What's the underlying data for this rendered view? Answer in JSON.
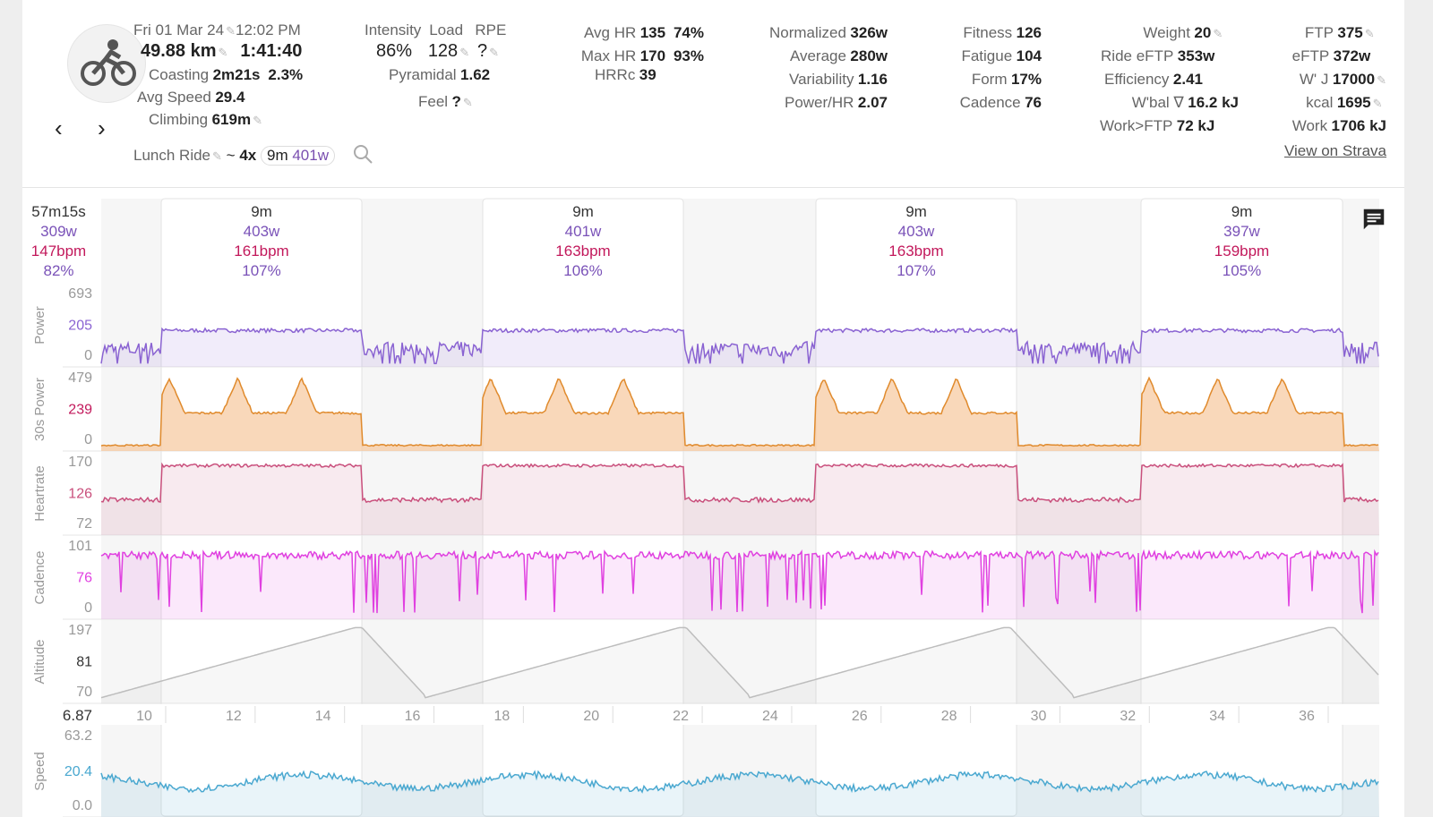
{
  "header": {
    "date": "Fri 01 Mar 24",
    "time": "12:02 PM",
    "distance": "49.88 km",
    "duration": "1:41:40",
    "coasting_label": "Coasting",
    "coasting": "2m21s",
    "coasting_pct": "2.3%",
    "avg_speed_label": "Avg Speed",
    "avg_speed": "29.4",
    "climbing_label": "Climbing",
    "climbing": "619m",
    "name": "Lunch Ride",
    "interval_summary_prefix": "~",
    "interval_count": "4x",
    "interval_duration": "9m",
    "interval_power": "401w",
    "intensity_label": "Intensity",
    "intensity": "86%",
    "load_label": "Load",
    "load": "128",
    "rpe_label": "RPE",
    "rpe": "?",
    "pyramidal_label": "Pyramidal",
    "pyramidal": "1.62",
    "feel_label": "Feel",
    "feel": "?",
    "avg_hr_label": "Avg HR",
    "avg_hr": "135",
    "avg_hr_pct": "74%",
    "max_hr_label": "Max HR",
    "max_hr": "170",
    "max_hr_pct": "93%",
    "hrrc_label": "HRRc",
    "hrrc": "39",
    "normalized_label": "Normalized",
    "normalized": "326w",
    "average_label": "Average",
    "average": "280w",
    "variability_label": "Variability",
    "variability": "1.16",
    "power_hr_label": "Power/HR",
    "power_hr": "2.07",
    "fitness_label": "Fitness",
    "fitness": "126",
    "fatigue_label": "Fatigue",
    "fatigue": "104",
    "form_label": "Form",
    "form": "17%",
    "cadence_label": "Cadence",
    "cadence": "76",
    "weight_label": "Weight",
    "weight": "20",
    "ride_eftp_label": "Ride eFTP",
    "ride_eftp": "353w",
    "efficiency_label": "Efficiency",
    "efficiency": "2.41",
    "wbal_label": "W'bal ∇",
    "wbal": "16.2 kJ",
    "work_ftp_label": "Work>FTP",
    "work_ftp": "72 kJ",
    "ftp_label": "FTP",
    "ftp": "375",
    "eftp_label": "eFTP",
    "eftp": "372w",
    "wprime_label": "W' J",
    "wprime": "17000",
    "kcal_label": "kcal",
    "kcal": "1695",
    "work_label": "Work",
    "work": "1706 kJ",
    "strava_link": "View on Strava",
    "prev": "‹",
    "next": "›",
    "pen": "✎"
  },
  "chart": {
    "summary": {
      "duration": "57m15s",
      "power": "309w",
      "hr": "147bpm",
      "pct": "82%"
    },
    "intervals": [
      {
        "duration": "9m",
        "power": "403w",
        "hr": "161bpm",
        "pct": "107%"
      },
      {
        "duration": "9m",
        "power": "401w",
        "hr": "163bpm",
        "pct": "106%"
      },
      {
        "duration": "9m",
        "power": "403w",
        "hr": "163bpm",
        "pct": "107%"
      },
      {
        "duration": "9m",
        "power": "397w",
        "hr": "159bpm",
        "pct": "105%"
      }
    ],
    "tracks": [
      {
        "name": "Power",
        "ticks": [
          "693",
          "205",
          "0"
        ],
        "color": "#8a63d2"
      },
      {
        "name": "30s Power",
        "ticks": [
          "479",
          "239",
          "0"
        ],
        "color": "#c2185b"
      },
      {
        "name": "Heartrate",
        "ticks": [
          "170",
          "126",
          "72"
        ],
        "color": "#c94f7c"
      },
      {
        "name": "Cadence",
        "ticks": [
          "101",
          "76",
          "0"
        ],
        "color": "#e040e0"
      },
      {
        "name": "Altitude",
        "ticks": [
          "197",
          "81",
          "70"
        ],
        "color": "#bdbdbd"
      },
      {
        "name": "Speed",
        "ticks": [
          "63.2",
          "20.4",
          "0.0"
        ],
        "color": "#4aa8d0"
      }
    ],
    "x_axis": {
      "current": "6.87",
      "ticks": [
        "10",
        "12",
        "14",
        "16",
        "18",
        "20",
        "22",
        "24",
        "26",
        "28",
        "30",
        "32",
        "34",
        "36"
      ]
    }
  },
  "icons": {
    "logo": "cyclist-icon",
    "search": "search-icon",
    "comment": "comment-icon"
  }
}
